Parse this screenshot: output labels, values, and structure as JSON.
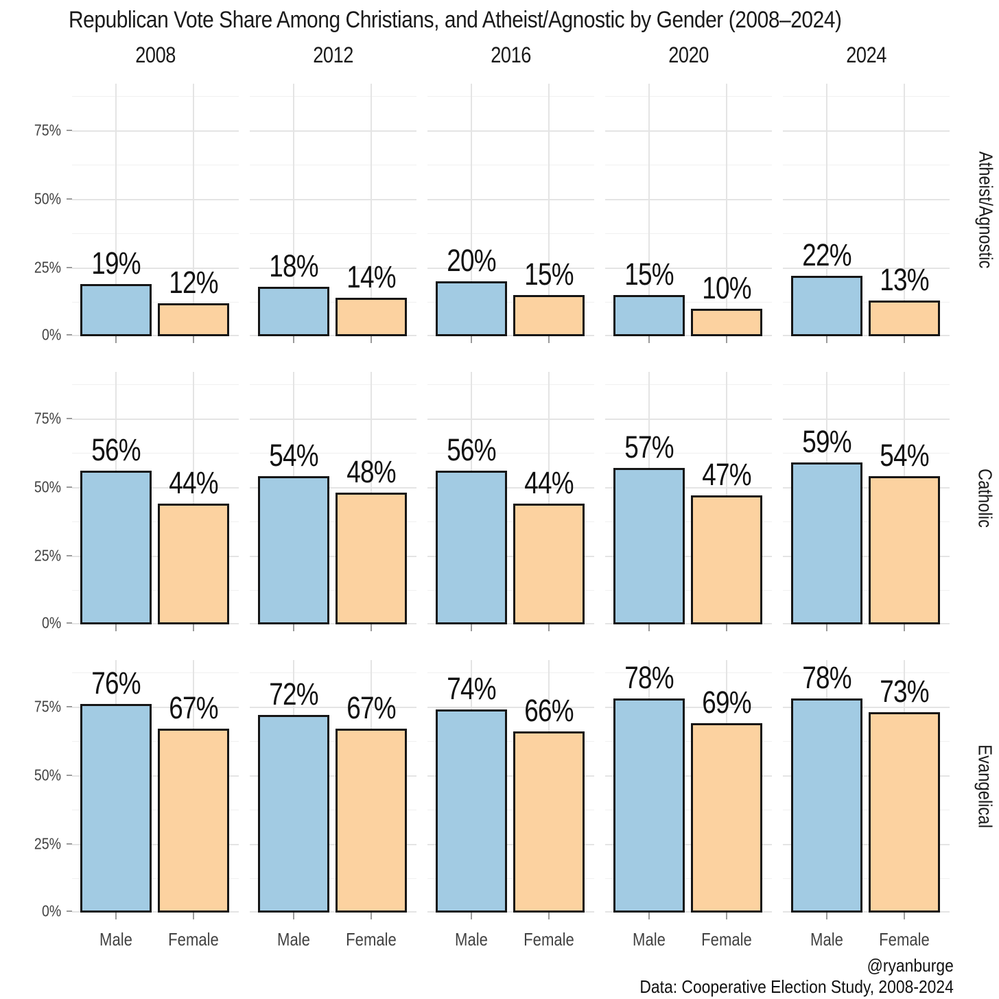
{
  "chart_data": {
    "type": "bar",
    "title": "Republican Vote Share Among Christians, and Atheist/Agnostic by Gender (2008–2024)",
    "col_facets": [
      "2008",
      "2012",
      "2016",
      "2020",
      "2024"
    ],
    "row_facets": [
      "Atheist/Agnostic",
      "Catholic",
      "Evangelical"
    ],
    "categories": [
      "Male",
      "Female"
    ],
    "ylabel": "",
    "xlabel": "",
    "ylim": [
      0,
      92
    ],
    "yticks": [
      "75%",
      "50%",
      "25%",
      "0%"
    ],
    "grid": "on",
    "legend": "none",
    "series_colors": {
      "male": "#a2cbe3",
      "female": "#fcd2a0"
    },
    "bar_outline": "#151515",
    "rows": [
      {
        "facet": "Atheist/Agnostic",
        "panels": [
          {
            "year": "2008",
            "values": [
              19,
              12
            ],
            "labels": [
              "19%",
              "12%"
            ]
          },
          {
            "year": "2012",
            "values": [
              18,
              14
            ],
            "labels": [
              "18%",
              "14%"
            ]
          },
          {
            "year": "2016",
            "values": [
              20,
              15
            ],
            "labels": [
              "20%",
              "15%"
            ]
          },
          {
            "year": "2020",
            "values": [
              15,
              10
            ],
            "labels": [
              "15%",
              "10%"
            ]
          },
          {
            "year": "2024",
            "values": [
              22,
              13
            ],
            "labels": [
              "22%",
              "13%"
            ]
          }
        ]
      },
      {
        "facet": "Catholic",
        "panels": [
          {
            "year": "2008",
            "values": [
              56,
              44
            ],
            "labels": [
              "56%",
              "44%"
            ]
          },
          {
            "year": "2012",
            "values": [
              54,
              48
            ],
            "labels": [
              "54%",
              "48%"
            ]
          },
          {
            "year": "2016",
            "values": [
              56,
              44
            ],
            "labels": [
              "56%",
              "44%"
            ]
          },
          {
            "year": "2020",
            "values": [
              57,
              47
            ],
            "labels": [
              "57%",
              "47%"
            ]
          },
          {
            "year": "2024",
            "values": [
              59,
              54
            ],
            "labels": [
              "59%",
              "54%"
            ]
          }
        ]
      },
      {
        "facet": "Evangelical",
        "panels": [
          {
            "year": "2008",
            "values": [
              76,
              67
            ],
            "labels": [
              "76%",
              "67%"
            ]
          },
          {
            "year": "2012",
            "values": [
              72,
              67
            ],
            "labels": [
              "72%",
              "67%"
            ]
          },
          {
            "year": "2016",
            "values": [
              74,
              66
            ],
            "labels": [
              "74%",
              "66%"
            ]
          },
          {
            "year": "2020",
            "values": [
              78,
              69
            ],
            "labels": [
              "78%",
              "69%"
            ]
          },
          {
            "year": "2024",
            "values": [
              78,
              73
            ],
            "labels": [
              "78%",
              "73%"
            ]
          }
        ]
      }
    ]
  },
  "caption": {
    "handle": "@ryanburge",
    "source": "Data: Cooperative Election Study, 2008-2024"
  }
}
